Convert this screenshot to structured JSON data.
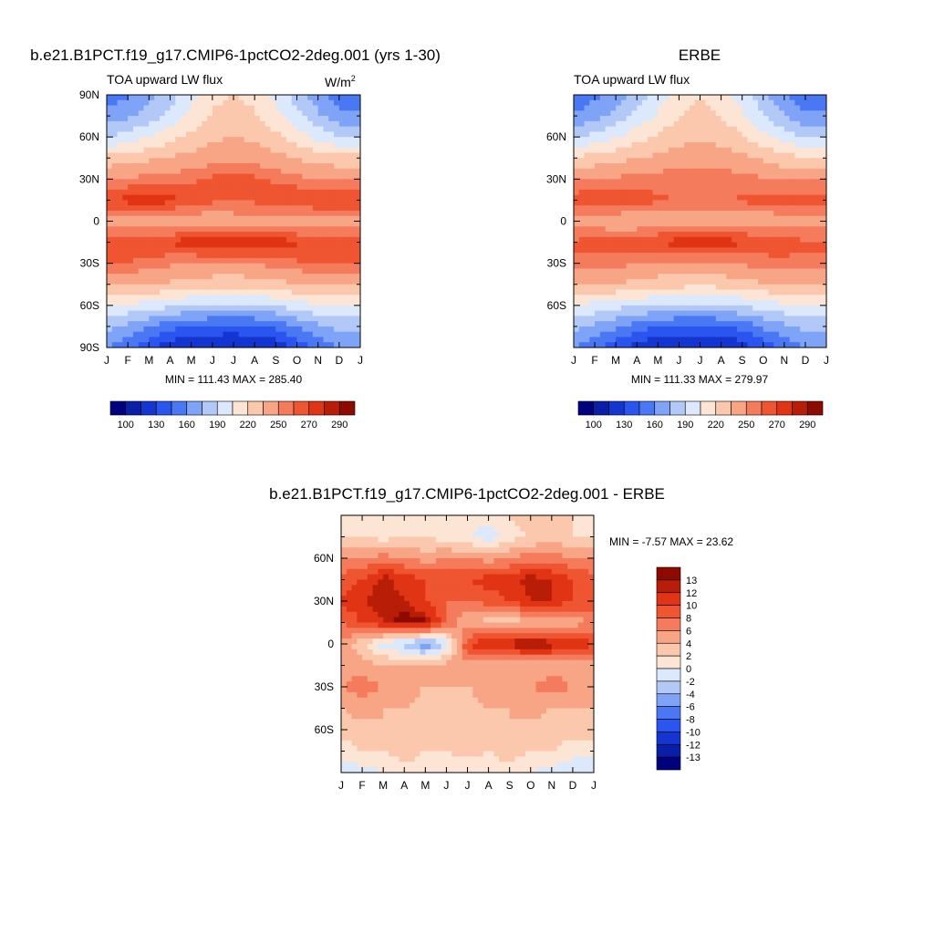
{
  "panels": [
    {
      "title": "b.e21.B1PCT.f19_g17.CMIP6-1pctCO2-2deg.001 (yrs 1-30)",
      "left_label": "TOA upward LW flux",
      "units_base": "W/m",
      "units_exp": "2",
      "stats": "MIN = 111.43 MAX = 285.40",
      "lat_ticks": [
        "90N",
        "60N",
        "30N",
        "0",
        "30S",
        "60S",
        "90S"
      ],
      "month_ticks": [
        "J",
        "F",
        "M",
        "A",
        "M",
        "J",
        "J",
        "A",
        "S",
        "O",
        "N",
        "D",
        "J"
      ]
    },
    {
      "title": "ERBE",
      "left_label": "TOA upward LW flux",
      "stats": "MIN = 111.33 MAX = 279.97",
      "lat_ticks": [
        "60N",
        "30N",
        "0",
        "30S",
        "60S"
      ],
      "month_ticks": [
        "J",
        "F",
        "M",
        "A",
        "M",
        "J",
        "J",
        "A",
        "S",
        "O",
        "N",
        "D",
        "J"
      ]
    },
    {
      "title": "b.e21.B1PCT.f19_g17.CMIP6-1pctCO2-2deg.001 - ERBE",
      "stats": "MIN =  -7.57 MAX =  23.62",
      "lat_ticks": [
        "60N",
        "30N",
        "0",
        "30S",
        "60S"
      ],
      "month_ticks": [
        "J",
        "F",
        "M",
        "A",
        "M",
        "J",
        "J",
        "A",
        "S",
        "O",
        "N",
        "D",
        "J"
      ]
    }
  ],
  "colorbar_abs": {
    "labels": [
      "100",
      "130",
      "160",
      "190",
      "220",
      "250",
      "270",
      "290"
    ],
    "colors": [
      "#00007f",
      "#0a1fa8",
      "#1535d0",
      "#2a55ee",
      "#4a78f5",
      "#7ea3f7",
      "#b2c9f8",
      "#dce8fc",
      "#fde5d6",
      "#fbc8ad",
      "#f8a586",
      "#f47c5c",
      "#ef5530",
      "#e03414",
      "#b81d07",
      "#8c0a00"
    ]
  },
  "colorbar_diff": {
    "labels": [
      "13",
      "12",
      "10",
      "8",
      "6",
      "4",
      "2",
      "0",
      "-2",
      "-4",
      "-6",
      "-8",
      "-10",
      "-12",
      "-13"
    ],
    "colors": [
      "#8c0a00",
      "#b81d07",
      "#e03414",
      "#ef5530",
      "#f47c5c",
      "#f8a586",
      "#fbc8ad",
      "#fde5d6",
      "#dce8fc",
      "#b2c9f8",
      "#7ea3f7",
      "#4a78f5",
      "#2a55ee",
      "#1535d0",
      "#0a1fa8",
      "#00007f"
    ]
  },
  "chart_data": [
    {
      "type": "heatmap",
      "title": "b.e21.B1PCT.f19_g17.CMIP6-1pctCO2-2deg.001 (yrs 1-30)",
      "subtitle": "TOA upward LW flux",
      "units": "W/m2",
      "x": [
        "J",
        "F",
        "M",
        "A",
        "M",
        "J",
        "J",
        "A",
        "S",
        "O",
        "N",
        "D",
        "J"
      ],
      "y": [
        -90,
        -75,
        -60,
        -45,
        -30,
        -15,
        0,
        15,
        30,
        45,
        60,
        75,
        90
      ],
      "xlim": [
        0,
        12
      ],
      "ylim": [
        -90,
        90
      ],
      "z": [
        [
          160,
          150,
          135,
          120,
          115,
          112,
          112,
          114,
          120,
          135,
          150,
          160,
          160
        ],
        [
          180,
          172,
          160,
          150,
          145,
          142,
          140,
          143,
          148,
          160,
          172,
          180,
          180
        ],
        [
          205,
          202,
          198,
          194,
          190,
          188,
          187,
          188,
          192,
          198,
          203,
          205,
          205
        ],
        [
          238,
          238,
          236,
          232,
          228,
          226,
          225,
          226,
          230,
          235,
          238,
          238,
          238
        ],
        [
          262,
          260,
          256,
          252,
          250,
          250,
          250,
          252,
          255,
          258,
          262,
          262,
          262
        ],
        [
          266,
          268,
          270,
          272,
          276,
          280,
          282,
          280,
          276,
          272,
          268,
          266,
          266
        ],
        [
          244,
          242,
          240,
          238,
          240,
          242,
          244,
          244,
          242,
          240,
          242,
          244,
          244
        ],
        [
          270,
          274,
          276,
          274,
          268,
          262,
          260,
          262,
          266,
          270,
          272,
          270,
          270
        ],
        [
          250,
          252,
          254,
          256,
          258,
          262,
          265,
          262,
          258,
          254,
          250,
          250,
          250
        ],
        [
          225,
          228,
          232,
          236,
          240,
          244,
          246,
          244,
          240,
          235,
          228,
          225,
          225
        ],
        [
          190,
          196,
          205,
          215,
          224,
          232,
          236,
          232,
          224,
          212,
          200,
          190,
          190
        ],
        [
          165,
          172,
          182,
          196,
          210,
          222,
          228,
          222,
          210,
          195,
          178,
          165,
          165
        ],
        [
          150,
          158,
          168,
          182,
          200,
          215,
          220,
          215,
          200,
          182,
          165,
          150,
          150
        ]
      ]
    },
    {
      "type": "heatmap",
      "title": "ERBE",
      "subtitle": "TOA upward LW flux",
      "x": [
        "J",
        "F",
        "M",
        "A",
        "M",
        "J",
        "J",
        "A",
        "S",
        "O",
        "N",
        "D",
        "J"
      ],
      "y": [
        -90,
        -75,
        -60,
        -45,
        -30,
        -15,
        0,
        15,
        30,
        45,
        60,
        75,
        90
      ],
      "xlim": [
        0,
        12
      ],
      "ylim": [
        -90,
        90
      ],
      "z": [
        [
          160,
          150,
          136,
          122,
          116,
          112,
          112,
          114,
          122,
          136,
          150,
          160,
          160
        ],
        [
          180,
          172,
          162,
          152,
          146,
          143,
          141,
          144,
          150,
          162,
          172,
          180,
          180
        ],
        [
          204,
          200,
          196,
          192,
          189,
          187,
          186,
          188,
          191,
          197,
          202,
          204,
          204
        ],
        [
          236,
          236,
          234,
          230,
          227,
          225,
          224,
          225,
          229,
          233,
          236,
          236,
          236
        ],
        [
          258,
          257,
          254,
          250,
          248,
          248,
          248,
          250,
          252,
          255,
          258,
          258,
          258
        ],
        [
          262,
          264,
          266,
          268,
          272,
          275,
          276,
          275,
          272,
          268,
          264,
          262,
          262
        ],
        [
          244,
          242,
          240,
          239,
          240,
          242,
          244,
          244,
          242,
          240,
          242,
          244,
          244
        ],
        [
          266,
          268,
          268,
          266,
          262,
          258,
          256,
          258,
          262,
          264,
          266,
          266,
          266
        ],
        [
          248,
          250,
          252,
          254,
          256,
          258,
          260,
          258,
          255,
          252,
          248,
          248,
          248
        ],
        [
          222,
          226,
          230,
          234,
          238,
          242,
          244,
          242,
          238,
          232,
          226,
          222,
          222
        ],
        [
          188,
          194,
          204,
          214,
          222,
          230,
          234,
          230,
          222,
          210,
          198,
          188,
          188
        ],
        [
          162,
          170,
          180,
          194,
          208,
          220,
          226,
          220,
          208,
          192,
          176,
          162,
          162
        ],
        [
          148,
          156,
          166,
          180,
          198,
          212,
          218,
          212,
          198,
          180,
          162,
          148,
          148
        ]
      ]
    },
    {
      "type": "heatmap",
      "title": "b.e21.B1PCT.f19_g17.CMIP6-1pctCO2-2deg.001 - ERBE",
      "x": [
        "J",
        "F",
        "M",
        "A",
        "M",
        "J",
        "J",
        "A",
        "S",
        "O",
        "N",
        "D",
        "J"
      ],
      "y": [
        -90,
        -75,
        -60,
        -45,
        -30,
        -15,
        0,
        15,
        30,
        45,
        60,
        75,
        90
      ],
      "xlim": [
        0,
        12
      ],
      "ylim": [
        -90,
        90
      ],
      "z": [
        [
          -2,
          -1,
          0,
          1,
          1,
          0,
          0,
          1,
          1,
          0,
          -1,
          -2,
          -2
        ],
        [
          1,
          2,
          2,
          3,
          2,
          2,
          3,
          2,
          3,
          2,
          2,
          1,
          1
        ],
        [
          3,
          3,
          4,
          3,
          3,
          2,
          2,
          3,
          4,
          3,
          3,
          3,
          3
        ],
        [
          4,
          5,
          4,
          4,
          3,
          3,
          3,
          4,
          4,
          5,
          4,
          4,
          4
        ],
        [
          6,
          7,
          6,
          5,
          4,
          4,
          4,
          5,
          5,
          6,
          7,
          6,
          6
        ],
        [
          5,
          5,
          4,
          4,
          4,
          5,
          5,
          5,
          4,
          4,
          5,
          5,
          5
        ],
        [
          6,
          2,
          -1,
          -3,
          -6,
          -2,
          10,
          12,
          13,
          14,
          13,
          12,
          10
        ],
        [
          8,
          10,
          12,
          14,
          14,
          8,
          4,
          3,
          3,
          3,
          3,
          5,
          6
        ],
        [
          10,
          12,
          13,
          12,
          10,
          8,
          8,
          9,
          10,
          12,
          12,
          10,
          10
        ],
        [
          9,
          10,
          13,
          11,
          10,
          10,
          10,
          11,
          11,
          13,
          12,
          10,
          9
        ],
        [
          6,
          6,
          7,
          6,
          5,
          6,
          6,
          5,
          6,
          7,
          7,
          6,
          6
        ],
        [
          2,
          2,
          1,
          2,
          2,
          1,
          0,
          -1,
          1,
          2,
          3,
          2,
          2
        ],
        [
          1,
          1,
          0,
          1,
          2,
          2,
          1,
          1,
          2,
          3,
          4,
          2,
          1
        ]
      ]
    }
  ]
}
